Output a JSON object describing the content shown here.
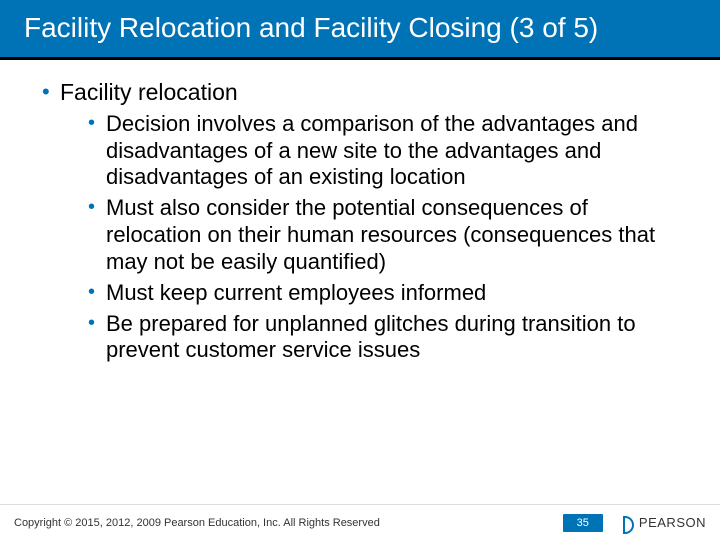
{
  "title": "Facility Relocation and Facility Closing (3 of 5)",
  "heading": "Facility relocation",
  "bullets": [
    "Decision involves a comparison of the advantages and disadvantages of a new site to the advantages and disadvantages of an existing location",
    "Must also consider the potential consequences of relocation on their human resources (consequences that may not be easily quantified)",
    "Must keep current employees informed",
    "Be prepared for unplanned glitches during transition to prevent customer service issues"
  ],
  "copyright": "Copyright © 2015, 2012, 2009 Pearson Education, Inc. All Rights Reserved",
  "slide_number": "35",
  "brand": "PEARSON",
  "colors": {
    "primary": "#0073b6",
    "text": "#000000",
    "background": "#ffffff"
  }
}
